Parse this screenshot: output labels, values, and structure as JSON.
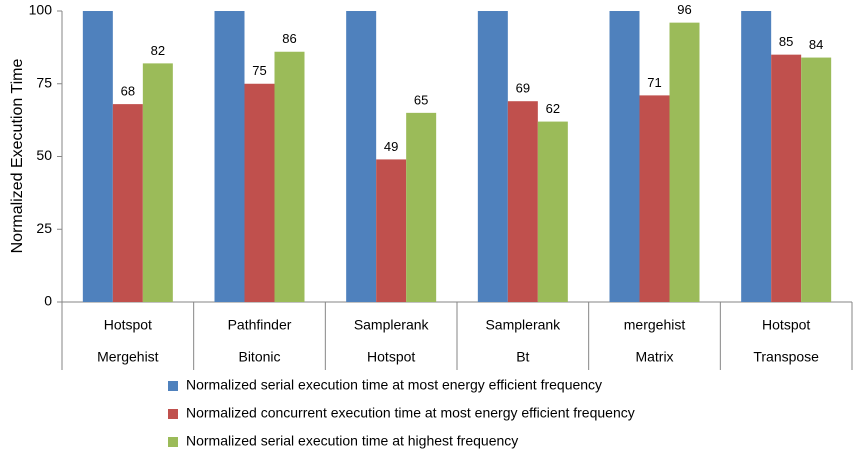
{
  "chart_data": {
    "type": "bar",
    "y_label": "Normalized Execution Time",
    "categories": [
      [
        "Hotspot",
        "Mergehist"
      ],
      [
        "Pathfinder",
        "Bitonic"
      ],
      [
        "Samplerank",
        "Hotspot"
      ],
      [
        "Samplerank",
        "Bt"
      ],
      [
        "mergehist",
        "Matrix"
      ],
      [
        "Hotspot",
        "Transpose"
      ]
    ],
    "series": [
      {
        "name": "Normalized serial execution time at most energy efficient frequency",
        "color": "#4f81bd",
        "values": [
          100,
          100,
          100,
          100,
          100,
          100
        ],
        "show_labels": false
      },
      {
        "name": "Normalized concurrent execution time at most energy efficient frequency",
        "color": "#c0504d",
        "values": [
          68,
          75,
          49,
          69,
          71,
          85
        ],
        "show_labels": true
      },
      {
        "name": "Normalized serial execution time at highest frequency",
        "color": "#9bbb59",
        "values": [
          82,
          86,
          65,
          62,
          96,
          84
        ],
        "show_labels": true
      }
    ],
    "ylim": [
      0,
      100
    ],
    "yticks": [
      0,
      25,
      50,
      75,
      100
    ],
    "legend": "bottom"
  }
}
